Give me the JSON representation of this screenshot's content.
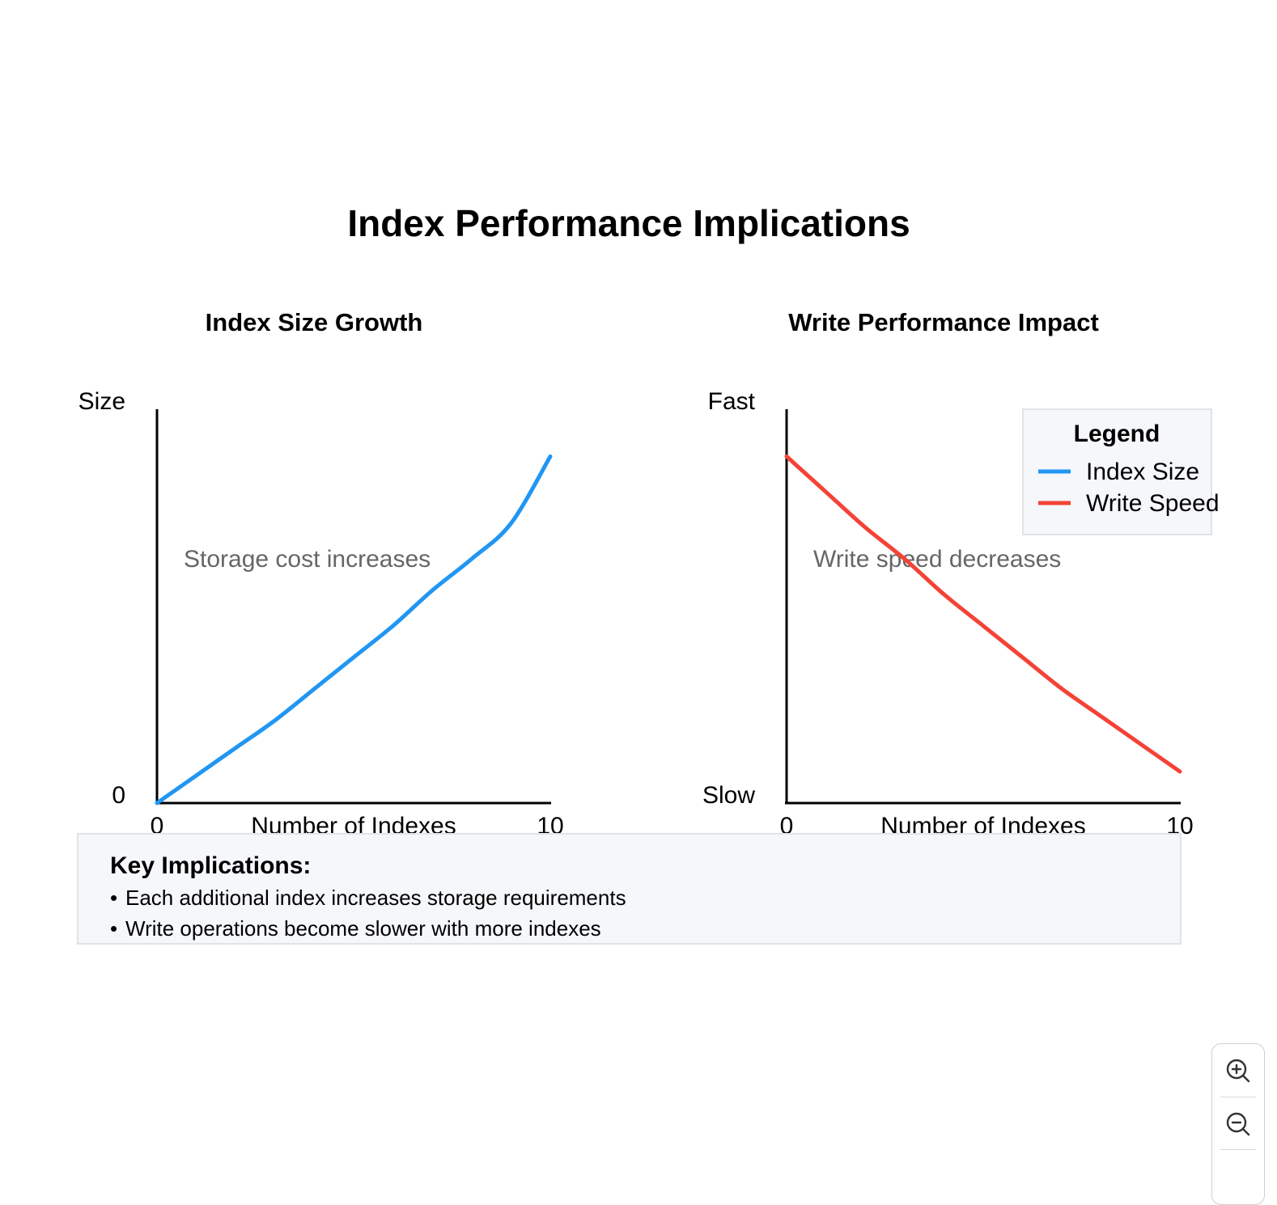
{
  "title": "Index Performance Implications",
  "colors": {
    "index_size": "#2196F3",
    "write_speed": "#F44336",
    "axis": "#000000",
    "annotation": "#666666",
    "panel_bg": "#F5F7FA",
    "panel_border": "#E0E3E8"
  },
  "chart_data": [
    {
      "type": "line",
      "title": "Index Size Growth",
      "xlabel": "Number of Indexes",
      "ylabel": "Size",
      "y_min_label": "0",
      "x_tick_labels": [
        "0",
        "10"
      ],
      "xlim": [
        0,
        10
      ],
      "ylim": [
        0,
        10
      ],
      "grid": false,
      "annotation": "Storage cost increases",
      "series": [
        {
          "name": "Index Size",
          "color": "#2196F3",
          "x": [
            0,
            1,
            2,
            3,
            4,
            5,
            6,
            7,
            8,
            9,
            10
          ],
          "y": [
            0,
            0.7,
            1.4,
            2.1,
            2.9,
            3.7,
            4.5,
            5.4,
            6.2,
            7.1,
            8.8
          ]
        }
      ]
    },
    {
      "type": "line",
      "title": "Write Performance Impact",
      "xlabel": "Number of Indexes",
      "ylabel": "Fast",
      "y_min_label": "Slow",
      "x_tick_labels": [
        "0",
        "10"
      ],
      "xlim": [
        0,
        10
      ],
      "ylim": [
        0,
        10
      ],
      "grid": false,
      "annotation": "Write speed decreases",
      "legend_placement": "top-right",
      "series": [
        {
          "name": "Write Speed",
          "color": "#F44336",
          "x": [
            0,
            1,
            2,
            3,
            4,
            5,
            6,
            7,
            8,
            9,
            10
          ],
          "y": [
            8.8,
            7.9,
            7.0,
            6.2,
            5.3,
            4.5,
            3.7,
            2.9,
            2.2,
            1.5,
            0.8
          ]
        }
      ]
    }
  ],
  "legend": {
    "title": "Legend",
    "items": [
      {
        "label": "Index Size",
        "color": "#2196F3"
      },
      {
        "label": "Write Speed",
        "color": "#F44336"
      }
    ]
  },
  "notes": {
    "title": "Key Implications:",
    "items": [
      "Each additional index increases storage requirements",
      "Write operations become slower with more indexes"
    ]
  },
  "zoom_controls": {
    "zoom_in_icon": "zoom-in-icon",
    "zoom_out_icon": "zoom-out-icon"
  }
}
